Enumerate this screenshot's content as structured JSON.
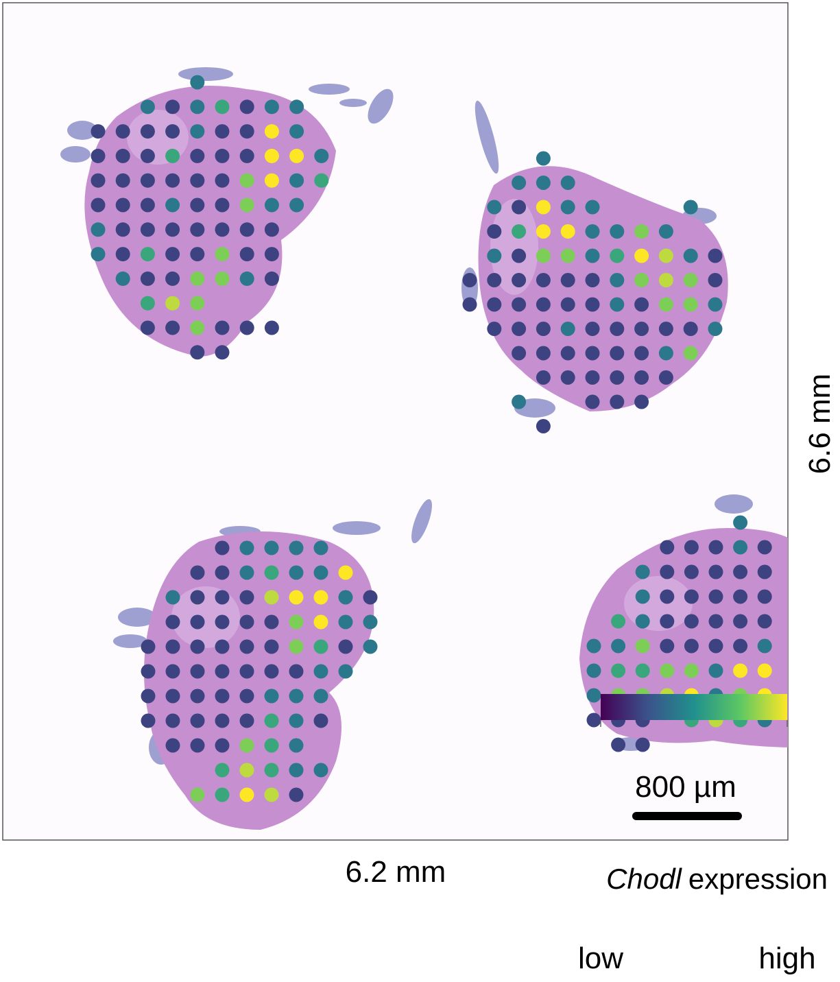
{
  "dimensions": {
    "width": "6.2 mm",
    "height": "6.6 mm"
  },
  "scale_bar": {
    "label": "800 µm"
  },
  "legend": {
    "gene": "Chodl",
    "label": "expression",
    "low": "low",
    "high": "high",
    "colormap": [
      "#440154",
      "#3b528b",
      "#21908d",
      "#5dc863",
      "#fde725"
    ],
    "clim": [
      0,
      5
    ]
  },
  "sections": [
    {
      "spots": [
        [
          null,
          null,
          null,
          null,
          2,
          null,
          null,
          null,
          null,
          null
        ],
        [
          null,
          null,
          2,
          1,
          2,
          3,
          1,
          2,
          2,
          null
        ],
        [
          1,
          1,
          1,
          1,
          2,
          1,
          1,
          5,
          2,
          null
        ],
        [
          1,
          1,
          1,
          3,
          1,
          1,
          1,
          5,
          5,
          2
        ],
        [
          1,
          1,
          1,
          1,
          1,
          1,
          4,
          5,
          2,
          3
        ],
        [
          1,
          1,
          1,
          2,
          1,
          1,
          4,
          2,
          2,
          null
        ],
        [
          2,
          1,
          1,
          1,
          1,
          1,
          1,
          1,
          null,
          null
        ],
        [
          2,
          1,
          3,
          1,
          1,
          4,
          1,
          1,
          null,
          null
        ],
        [
          null,
          2,
          1,
          1,
          4,
          4,
          2,
          1,
          null,
          null
        ],
        [
          null,
          null,
          3,
          4.5,
          4,
          null,
          null,
          null,
          null,
          null
        ],
        [
          null,
          null,
          1,
          1,
          4,
          1,
          1,
          1,
          null,
          null
        ],
        [
          null,
          null,
          null,
          null,
          1,
          1,
          null,
          null,
          null,
          null
        ]
      ]
    },
    {
      "spots": [
        [
          null,
          null,
          null,
          2,
          null,
          null,
          null,
          null,
          null,
          null,
          null
        ],
        [
          null,
          null,
          2,
          2,
          2,
          null,
          null,
          null,
          null,
          null,
          null
        ],
        [
          null,
          2,
          1,
          5,
          2,
          2,
          null,
          null,
          null,
          2,
          null
        ],
        [
          null,
          1,
          3,
          5,
          5,
          2,
          2,
          4,
          2,
          null,
          null
        ],
        [
          null,
          2,
          1,
          4,
          4,
          2,
          3,
          5,
          4.5,
          2,
          1
        ],
        [
          1,
          1,
          1,
          1,
          1,
          1,
          2,
          4,
          4.5,
          4,
          1
        ],
        [
          1,
          1,
          1,
          1,
          1,
          1,
          2,
          1,
          4,
          4,
          2
        ],
        [
          null,
          1,
          1,
          1,
          2,
          1,
          1,
          1,
          1,
          1,
          2
        ],
        [
          null,
          null,
          1,
          1,
          1,
          1,
          1,
          1,
          2,
          4,
          null
        ],
        [
          null,
          null,
          null,
          1,
          1,
          1,
          1,
          1,
          1,
          null,
          null
        ],
        [
          null,
          null,
          2,
          null,
          null,
          1,
          1,
          1,
          null,
          null,
          null
        ],
        [
          null,
          null,
          null,
          1,
          null,
          null,
          null,
          null,
          null,
          null,
          null
        ]
      ]
    },
    {
      "spots": [
        [
          null,
          null,
          null,
          1,
          2,
          2,
          2,
          2,
          null,
          null
        ],
        [
          null,
          null,
          1,
          1,
          2,
          3,
          2,
          2,
          5,
          null
        ],
        [
          null,
          2,
          1,
          1,
          1,
          4.5,
          5,
          5,
          2,
          1
        ],
        [
          null,
          1,
          1,
          1,
          1,
          1,
          4,
          5,
          2,
          2
        ],
        [
          1,
          1,
          1,
          1,
          1,
          1,
          4,
          3,
          1,
          2
        ],
        [
          1,
          1,
          1,
          1,
          1,
          1,
          1,
          2,
          2,
          null
        ],
        [
          1,
          1,
          1,
          1,
          1,
          2,
          2,
          2,
          null,
          null
        ],
        [
          1,
          1,
          1,
          1,
          1,
          3,
          2,
          1,
          null,
          null
        ],
        [
          null,
          1,
          1,
          1,
          4,
          3,
          2,
          null,
          null,
          null
        ],
        [
          null,
          null,
          null,
          3,
          4.5,
          3,
          2,
          2,
          null,
          null
        ],
        [
          null,
          null,
          4,
          3,
          5,
          4.5,
          1,
          null,
          null,
          null
        ]
      ]
    },
    {
      "spots": [
        [
          null,
          null,
          null,
          null,
          null,
          null,
          2,
          null
        ],
        [
          null,
          null,
          null,
          1,
          1,
          1,
          2,
          1
        ],
        [
          null,
          null,
          2,
          1,
          1,
          1,
          1,
          1
        ],
        [
          null,
          null,
          2,
          1,
          1,
          1,
          1,
          1
        ],
        [
          null,
          3,
          2,
          1,
          1,
          1,
          1,
          1
        ],
        [
          2,
          2,
          4,
          1,
          1,
          1,
          1,
          2
        ],
        [
          2,
          3,
          3,
          4,
          4,
          2,
          5,
          5
        ],
        [
          2,
          4,
          4,
          4.5,
          5,
          2,
          4,
          5
        ],
        [
          1,
          1,
          1,
          null,
          3,
          4.5,
          3,
          2
        ],
        [
          null,
          1,
          1,
          null,
          null,
          null,
          null,
          null
        ]
      ]
    }
  ]
}
